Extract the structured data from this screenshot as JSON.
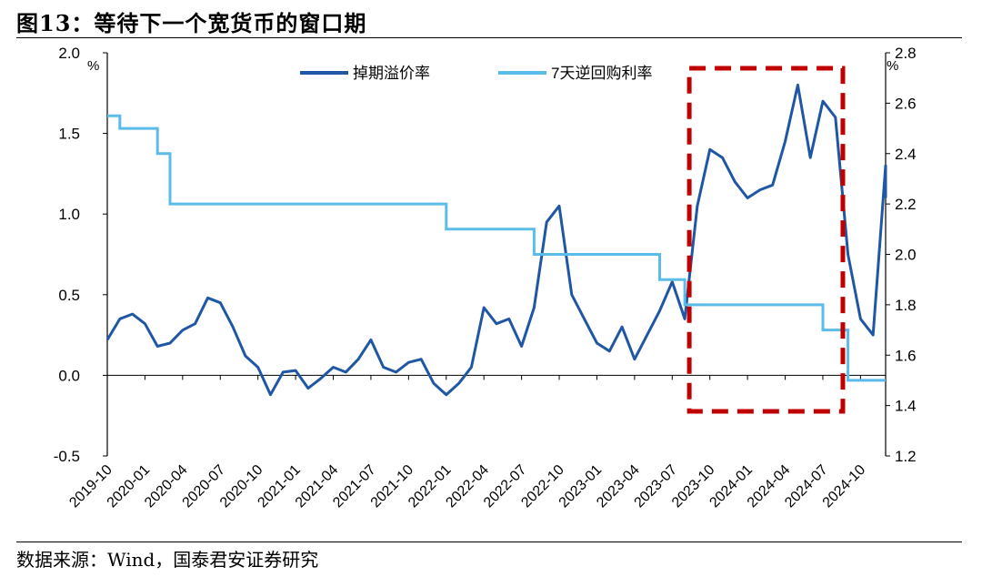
{
  "figure": {
    "title": "图13：等待下一个宽货币的窗口期",
    "source": "数据来源：Wind，国泰君安证券研究"
  },
  "colors": {
    "term_premium": "#1f57a4",
    "reverse_repo": "#5bbbe9",
    "highlight_box": "#c00000",
    "axis": "#000000"
  },
  "chart_data": {
    "type": "line",
    "title": "图13：等待下一个宽货币的窗口期",
    "x_ticks": [
      "2019-10",
      "2020-01",
      "2020-04",
      "2020-07",
      "2020-10",
      "2021-01",
      "2021-04",
      "2021-07",
      "2021-10",
      "2022-01",
      "2022-04",
      "2022-07",
      "2022-10",
      "2023-01",
      "2023-04",
      "2023-07",
      "2023-10",
      "2024-01",
      "2024-04",
      "2024-07",
      "2024-10"
    ],
    "x_range": [
      "2019-10",
      "2024-12"
    ],
    "y_left": {
      "unit": "%",
      "range": [
        -0.5,
        2.0
      ],
      "ticks": [
        "-0.5",
        "0.0",
        "0.5",
        "1.0",
        "1.5",
        "2.0"
      ]
    },
    "y_right": {
      "unit": "%",
      "range": [
        1.2,
        2.8
      ],
      "ticks": [
        "1.2",
        "1.4",
        "1.6",
        "1.8",
        "2.0",
        "2.2",
        "2.4",
        "2.6",
        "2.8"
      ]
    },
    "legend_position": "top-center",
    "series": [
      {
        "name": "掉期溢价率",
        "axis": "left",
        "points": [
          [
            "2019-10",
            0.22
          ],
          [
            "2019-11",
            0.35
          ],
          [
            "2019-12",
            0.38
          ],
          [
            "2020-01",
            0.32
          ],
          [
            "2020-02",
            0.18
          ],
          [
            "2020-03",
            0.2
          ],
          [
            "2020-04",
            0.28
          ],
          [
            "2020-05",
            0.32
          ],
          [
            "2020-06",
            0.48
          ],
          [
            "2020-07",
            0.45
          ],
          [
            "2020-08",
            0.3
          ],
          [
            "2020-09",
            0.12
          ],
          [
            "2020-10",
            0.05
          ],
          [
            "2020-11",
            -0.12
          ],
          [
            "2020-12",
            0.02
          ],
          [
            "2021-01",
            0.03
          ],
          [
            "2021-02",
            -0.08
          ],
          [
            "2021-03",
            -0.02
          ],
          [
            "2021-04",
            0.05
          ],
          [
            "2021-05",
            0.02
          ],
          [
            "2021-06",
            0.1
          ],
          [
            "2021-07",
            0.22
          ],
          [
            "2021-08",
            0.05
          ],
          [
            "2021-09",
            0.02
          ],
          [
            "2021-10",
            0.08
          ],
          [
            "2021-11",
            0.1
          ],
          [
            "2021-12",
            -0.05
          ],
          [
            "2022-01",
            -0.12
          ],
          [
            "2022-02",
            -0.05
          ],
          [
            "2022-03",
            0.05
          ],
          [
            "2022-04",
            0.42
          ],
          [
            "2022-05",
            0.32
          ],
          [
            "2022-06",
            0.35
          ],
          [
            "2022-07",
            0.18
          ],
          [
            "2022-08",
            0.42
          ],
          [
            "2022-09",
            0.95
          ],
          [
            "2022-10",
            1.05
          ],
          [
            "2022-11",
            0.5
          ],
          [
            "2022-12",
            0.35
          ],
          [
            "2023-01",
            0.2
          ],
          [
            "2023-02",
            0.15
          ],
          [
            "2023-03",
            0.3
          ],
          [
            "2023-04",
            0.1
          ],
          [
            "2023-05",
            0.25
          ],
          [
            "2023-06",
            0.4
          ],
          [
            "2023-07",
            0.58
          ],
          [
            "2023-08",
            0.35
          ],
          [
            "2023-09",
            1.05
          ],
          [
            "2023-10",
            1.4
          ],
          [
            "2023-11",
            1.35
          ],
          [
            "2023-12",
            1.2
          ],
          [
            "2024-01",
            1.1
          ],
          [
            "2024-02",
            1.15
          ],
          [
            "2024-03",
            1.18
          ],
          [
            "2024-04",
            1.45
          ],
          [
            "2024-05",
            1.8
          ],
          [
            "2024-06",
            1.35
          ],
          [
            "2024-07",
            1.7
          ],
          [
            "2024-08",
            1.6
          ],
          [
            "2024-09",
            0.75
          ],
          [
            "2024-10",
            0.35
          ],
          [
            "2024-11",
            0.25
          ],
          [
            "2024-12",
            1.3
          ],
          [
            "2024-12",
            1.1
          ]
        ]
      },
      {
        "name": "7天逆回购利率",
        "axis": "right",
        "steps": [
          [
            "2019-10",
            2.55
          ],
          [
            "2019-11",
            2.5
          ],
          [
            "2020-02",
            2.4
          ],
          [
            "2020-03",
            2.2
          ],
          [
            "2022-01",
            2.1
          ],
          [
            "2022-08",
            2.0
          ],
          [
            "2023-06",
            1.9
          ],
          [
            "2023-08",
            1.8
          ],
          [
            "2024-07",
            1.7
          ],
          [
            "2024-09",
            1.5
          ]
        ]
      }
    ]
  }
}
